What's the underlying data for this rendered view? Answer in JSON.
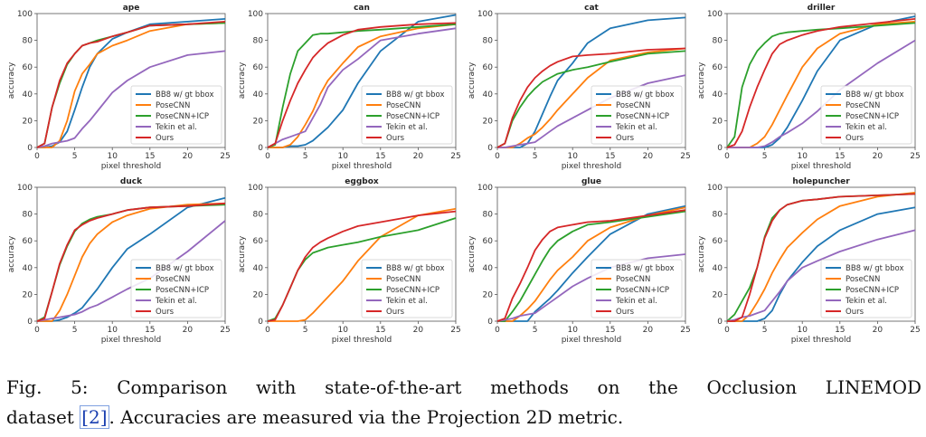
{
  "chart_data": {
    "type": "line",
    "shared": {
      "xlabel": "pixel threshold",
      "ylabel": "accuracy",
      "xlim": [
        0,
        25
      ],
      "ylim": [
        0,
        100
      ],
      "xticks": [
        0,
        5,
        10,
        15,
        20,
        25
      ],
      "yticks": [
        0,
        20,
        40,
        60,
        80,
        100
      ],
      "x": [
        0,
        1,
        2,
        3,
        4,
        5,
        6,
        7,
        8,
        10,
        12,
        15,
        20,
        25
      ],
      "legend_position": "lower-right",
      "series_names": [
        "BB8 w/ gt bbox",
        "PoseCNN",
        "PoseCNN+ICP",
        "Tekin et al.",
        "Ours"
      ],
      "colors": [
        "#1f77b4",
        "#ff7f0e",
        "#2ca02c",
        "#9467bd",
        "#d62728"
      ]
    },
    "panels": [
      {
        "title": "ape",
        "series": [
          [
            0,
            0,
            1,
            4,
            12,
            28,
            45,
            60,
            70,
            81,
            86,
            92,
            94,
            96
          ],
          [
            0,
            0,
            0,
            5,
            20,
            42,
            55,
            62,
            70,
            76,
            80,
            87,
            92,
            93
          ],
          [
            0,
            3,
            30,
            48,
            62,
            70,
            76,
            78,
            80,
            83,
            86,
            91,
            92,
            93
          ],
          [
            0,
            1,
            3,
            4,
            5,
            7,
            14,
            20,
            27,
            41,
            50,
            60,
            69,
            72
          ],
          [
            0,
            3,
            30,
            50,
            63,
            70,
            76,
            78,
            79,
            83,
            86,
            91,
            92,
            94
          ]
        ]
      },
      {
        "title": "can",
        "series": [
          [
            0,
            0,
            0,
            1,
            1,
            2,
            5,
            10,
            15,
            28,
            48,
            72,
            94,
            99
          ],
          [
            0,
            0,
            0,
            2,
            8,
            17,
            27,
            40,
            50,
            63,
            75,
            83,
            89,
            92
          ],
          [
            0,
            2,
            30,
            55,
            72,
            78,
            84,
            85,
            85,
            86,
            87,
            88,
            90,
            92
          ],
          [
            0,
            3,
            6,
            8,
            10,
            12,
            22,
            32,
            45,
            58,
            66,
            80,
            85,
            89
          ],
          [
            0,
            3,
            20,
            35,
            48,
            58,
            67,
            73,
            78,
            84,
            88,
            90,
            92,
            93
          ]
        ]
      },
      {
        "title": "cat",
        "series": [
          [
            0,
            0,
            0,
            0,
            3,
            12,
            25,
            38,
            50,
            63,
            78,
            89,
            95,
            97
          ],
          [
            0,
            0,
            0,
            3,
            7,
            10,
            15,
            21,
            28,
            40,
            52,
            65,
            71,
            74
          ],
          [
            0,
            3,
            20,
            30,
            38,
            44,
            49,
            52,
            55,
            58,
            60,
            64,
            70,
            72
          ],
          [
            0,
            0,
            1,
            2,
            3,
            4,
            8,
            12,
            16,
            22,
            28,
            37,
            48,
            54
          ],
          [
            0,
            3,
            22,
            35,
            45,
            52,
            57,
            61,
            64,
            68,
            69,
            70,
            73,
            74
          ]
        ]
      },
      {
        "title": "driller",
        "series": [
          [
            0,
            0,
            0,
            0,
            0,
            0,
            2,
            7,
            15,
            35,
            57,
            80,
            92,
            98
          ],
          [
            0,
            0,
            0,
            0,
            3,
            8,
            17,
            28,
            39,
            60,
            74,
            85,
            92,
            94
          ],
          [
            0,
            8,
            45,
            62,
            72,
            78,
            83,
            85,
            86,
            87,
            88,
            89,
            91,
            93
          ],
          [
            0,
            0,
            0,
            0,
            0,
            1,
            4,
            8,
            11,
            18,
            27,
            43,
            63,
            80
          ],
          [
            0,
            2,
            12,
            30,
            45,
            58,
            70,
            77,
            80,
            84,
            87,
            90,
            93,
            96
          ]
        ]
      },
      {
        "title": "duck",
        "series": [
          [
            0,
            0,
            0,
            1,
            3,
            6,
            10,
            17,
            24,
            40,
            54,
            65,
            85,
            92
          ],
          [
            0,
            0,
            0,
            8,
            20,
            34,
            48,
            58,
            65,
            74,
            79,
            84,
            87,
            88
          ],
          [
            0,
            3,
            22,
            42,
            56,
            67,
            73,
            76,
            78,
            80,
            83,
            85,
            86,
            87
          ],
          [
            0,
            1,
            2,
            3,
            4,
            5,
            7,
            10,
            12,
            18,
            24,
            32,
            52,
            75
          ],
          [
            0,
            2,
            22,
            43,
            57,
            68,
            72,
            75,
            77,
            80,
            83,
            85,
            86,
            88
          ]
        ]
      },
      {
        "title": "eggbox",
        "series": [
          [],
          [
            0,
            0,
            0,
            0,
            0,
            1,
            6,
            12,
            18,
            30,
            45,
            63,
            79,
            84
          ],
          [
            0,
            2,
            12,
            25,
            38,
            46,
            51,
            53,
            55,
            57,
            59,
            63,
            68,
            77
          ],
          [],
          [
            0,
            1,
            12,
            25,
            38,
            48,
            55,
            59,
            62,
            67,
            71,
            74,
            79,
            82
          ]
        ]
      },
      {
        "title": "glue",
        "series": [
          [
            0,
            0,
            0,
            0,
            0,
            7,
            12,
            17,
            23,
            36,
            48,
            65,
            80,
            86
          ],
          [
            0,
            0,
            0,
            4,
            9,
            15,
            23,
            31,
            38,
            48,
            60,
            70,
            79,
            85
          ],
          [
            0,
            0,
            7,
            15,
            25,
            35,
            45,
            54,
            60,
            67,
            72,
            74,
            78,
            82
          ],
          [
            0,
            1,
            2,
            4,
            5,
            6,
            10,
            14,
            18,
            26,
            32,
            40,
            47,
            50
          ],
          [
            0,
            2,
            17,
            28,
            40,
            53,
            61,
            67,
            70,
            72,
            74,
            75,
            79,
            83
          ]
        ]
      },
      {
        "title": "holepuncher",
        "series": [
          [
            0,
            0,
            0,
            0,
            0,
            2,
            8,
            20,
            30,
            44,
            56,
            68,
            80,
            85
          ],
          [
            0,
            0,
            0,
            5,
            14,
            24,
            36,
            46,
            55,
            66,
            76,
            86,
            93,
            96
          ],
          [
            0,
            5,
            15,
            25,
            40,
            63,
            77,
            83,
            87,
            90,
            91,
            93,
            94,
            95
          ],
          [
            0,
            1,
            3,
            4,
            6,
            8,
            15,
            22,
            30,
            40,
            45,
            52,
            61,
            68
          ],
          [
            0,
            0,
            3,
            20,
            40,
            62,
            75,
            83,
            87,
            90,
            91,
            93,
            94,
            95
          ]
        ]
      }
    ]
  },
  "caption": {
    "label": "Fig. 5:",
    "line1": "Comparison with state-of-the-art methods on the Occlusion LINEMOD",
    "line2_pre": "dataset",
    "ref": "[2]",
    "line2_post": ". Accuracies are measured via the Projection 2D metric."
  }
}
